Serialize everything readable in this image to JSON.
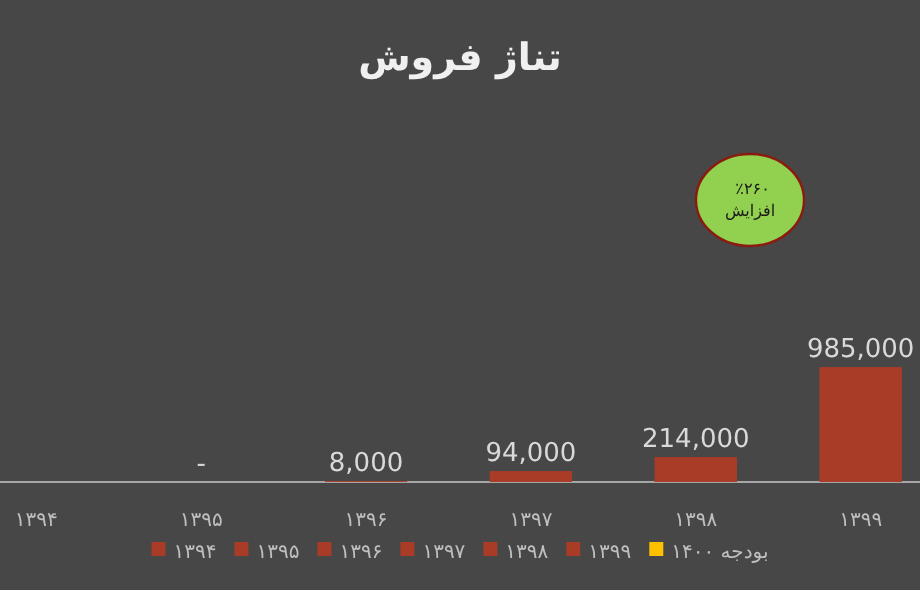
{
  "chart_data": {
    "type": "bar",
    "title": "تناژ فروش",
    "categories": [
      "۱۳۹۴",
      "۱۳۹۵",
      "۱۳۹۶",
      "۱۳۹۷",
      "۱۳۹۸",
      "۱۳۹۹"
    ],
    "series": [
      {
        "name": "۱۳۹۴",
        "color": "#a93c27",
        "values": [
          null,
          null,
          null,
          null,
          null,
          null
        ],
        "value_labels": [
          null,
          null,
          null,
          null,
          null,
          null
        ]
      },
      {
        "name": "۱۳۹۵",
        "color": "#a93c27",
        "values": [
          null,
          0,
          null,
          null,
          null,
          null
        ],
        "value_labels": [
          null,
          "-",
          null,
          null,
          null,
          null
        ]
      },
      {
        "name": "۱۳۹۶",
        "color": "#a93c27",
        "values": [
          null,
          null,
          8000,
          null,
          null,
          null
        ],
        "value_labels": [
          null,
          null,
          "8,000",
          null,
          null,
          null
        ]
      },
      {
        "name": "۱۳۹۷",
        "color": "#a93c27",
        "values": [
          null,
          null,
          null,
          94000,
          null,
          null
        ],
        "value_labels": [
          null,
          null,
          null,
          "94,000",
          null,
          null
        ]
      },
      {
        "name": "۱۳۹۸",
        "color": "#a93c27",
        "values": [
          null,
          null,
          null,
          null,
          214000,
          null
        ],
        "value_labels": [
          null,
          null,
          null,
          null,
          "214,000",
          null
        ]
      },
      {
        "name": "۱۳۹۹",
        "color": "#a93c27",
        "values": [
          null,
          null,
          null,
          null,
          null,
          985000
        ],
        "value_labels": [
          null,
          null,
          null,
          null,
          null,
          "985,000"
        ]
      },
      {
        "name": "بودجه ۱۴۰۰",
        "color": "#ffc000",
        "values": [
          null,
          null,
          null,
          null,
          null,
          null
        ],
        "value_labels": [
          null,
          null,
          null,
          null,
          null,
          null
        ]
      }
    ],
    "tick_labels": "x",
    "legend": "bottom",
    "annotations": [
      "٪۲۶۰ افزایش"
    ]
  }
}
